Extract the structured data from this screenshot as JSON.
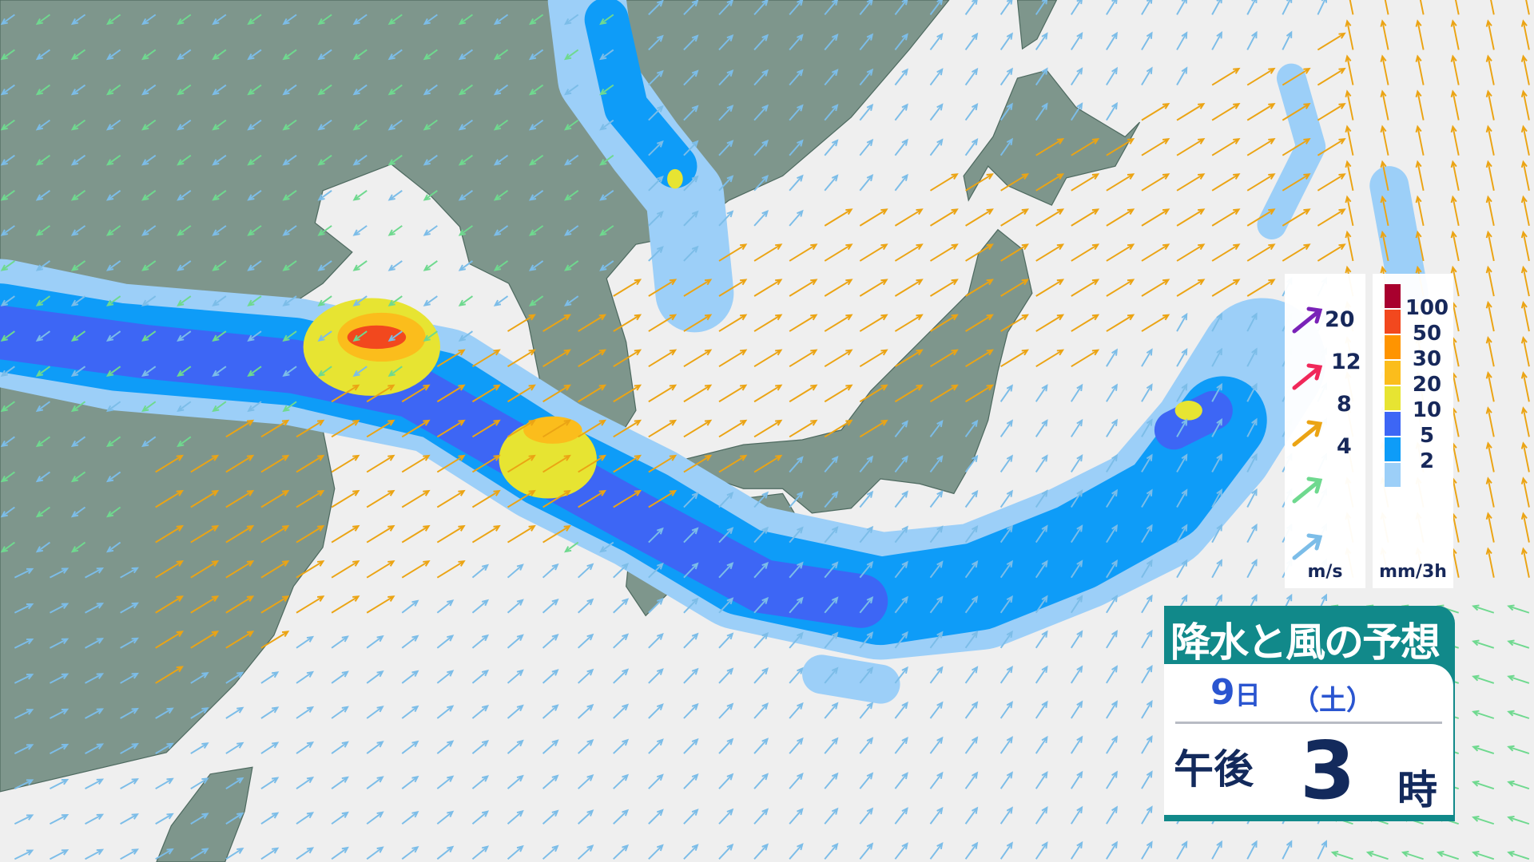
{
  "title": "降水と風の予想",
  "date": {
    "day": "9",
    "day_unit": "日",
    "weekday": "（土）"
  },
  "time": {
    "period": "午後",
    "hour": "3",
    "hour_unit": "時"
  },
  "wind_legend": {
    "unit": "m/s",
    "levels": [
      {
        "label": "20",
        "color": "#7a22b8"
      },
      {
        "label": "12",
        "color": "#f0285a"
      },
      {
        "label": "8",
        "color": "#eba414"
      },
      {
        "label": "4",
        "color": "#6fd98f"
      },
      {
        "label": "",
        "color": "#7cbde8"
      }
    ]
  },
  "rain_legend": {
    "unit": "mm/3h",
    "levels": [
      {
        "label": "100",
        "color": "#a8002e"
      },
      {
        "label": "50",
        "color": "#f2481e"
      },
      {
        "label": "30",
        "color": "#ff9400"
      },
      {
        "label": "20",
        "color": "#fbbd1c"
      },
      {
        "label": "10",
        "color": "#e7e432"
      },
      {
        "label": "5",
        "color": "#3d66f5"
      },
      {
        "label": "2",
        "color": "#0e9cf8"
      },
      {
        "label": "",
        "color": "#9ccff8"
      }
    ]
  },
  "colors": {
    "land": "#7e968c",
    "sea": "#efefef",
    "title_bg": "#11898a"
  }
}
